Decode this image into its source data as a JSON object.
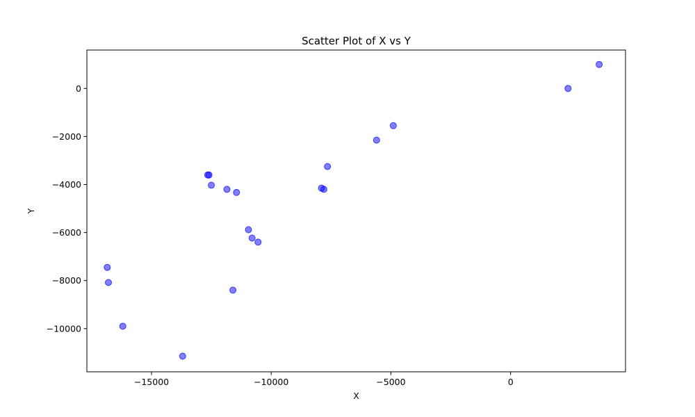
{
  "chart_data": {
    "type": "scatter",
    "title": "Scatter Plot of X vs Y",
    "xlabel": "X",
    "ylabel": "Y",
    "xlim": [
      -17700,
      4800
    ],
    "ylim": [
      -11800,
      1600
    ],
    "xticks": [
      -15000,
      -10000,
      -5000,
      0
    ],
    "yticks": [
      -10000,
      -8000,
      -6000,
      -4000,
      -2000,
      0
    ],
    "xtick_labels": [
      "−15000",
      "−10000",
      "−5000",
      "0"
    ],
    "ytick_labels": [
      "−10000",
      "−8000",
      "−6000",
      "−4000",
      "−2000",
      "0"
    ],
    "grid": false,
    "marker_color": "#0000ff",
    "marker_alpha": 0.5,
    "points": [
      {
        "x": 3700,
        "y": 1000
      },
      {
        "x": 2400,
        "y": 0
      },
      {
        "x": -4900,
        "y": -1550
      },
      {
        "x": -5600,
        "y": -2150
      },
      {
        "x": -7650,
        "y": -3250
      },
      {
        "x": -7900,
        "y": -4150
      },
      {
        "x": -7800,
        "y": -4200
      },
      {
        "x": -12650,
        "y": -3600
      },
      {
        "x": -12600,
        "y": -3600
      },
      {
        "x": -12500,
        "y": -4030
      },
      {
        "x": -11850,
        "y": -4200
      },
      {
        "x": -11450,
        "y": -4330
      },
      {
        "x": -10950,
        "y": -5880
      },
      {
        "x": -10800,
        "y": -6230
      },
      {
        "x": -10550,
        "y": -6400
      },
      {
        "x": -11600,
        "y": -8400
      },
      {
        "x": -16850,
        "y": -7450
      },
      {
        "x": -16800,
        "y": -8080
      },
      {
        "x": -16200,
        "y": -9900
      },
      {
        "x": -13700,
        "y": -11150
      }
    ]
  }
}
